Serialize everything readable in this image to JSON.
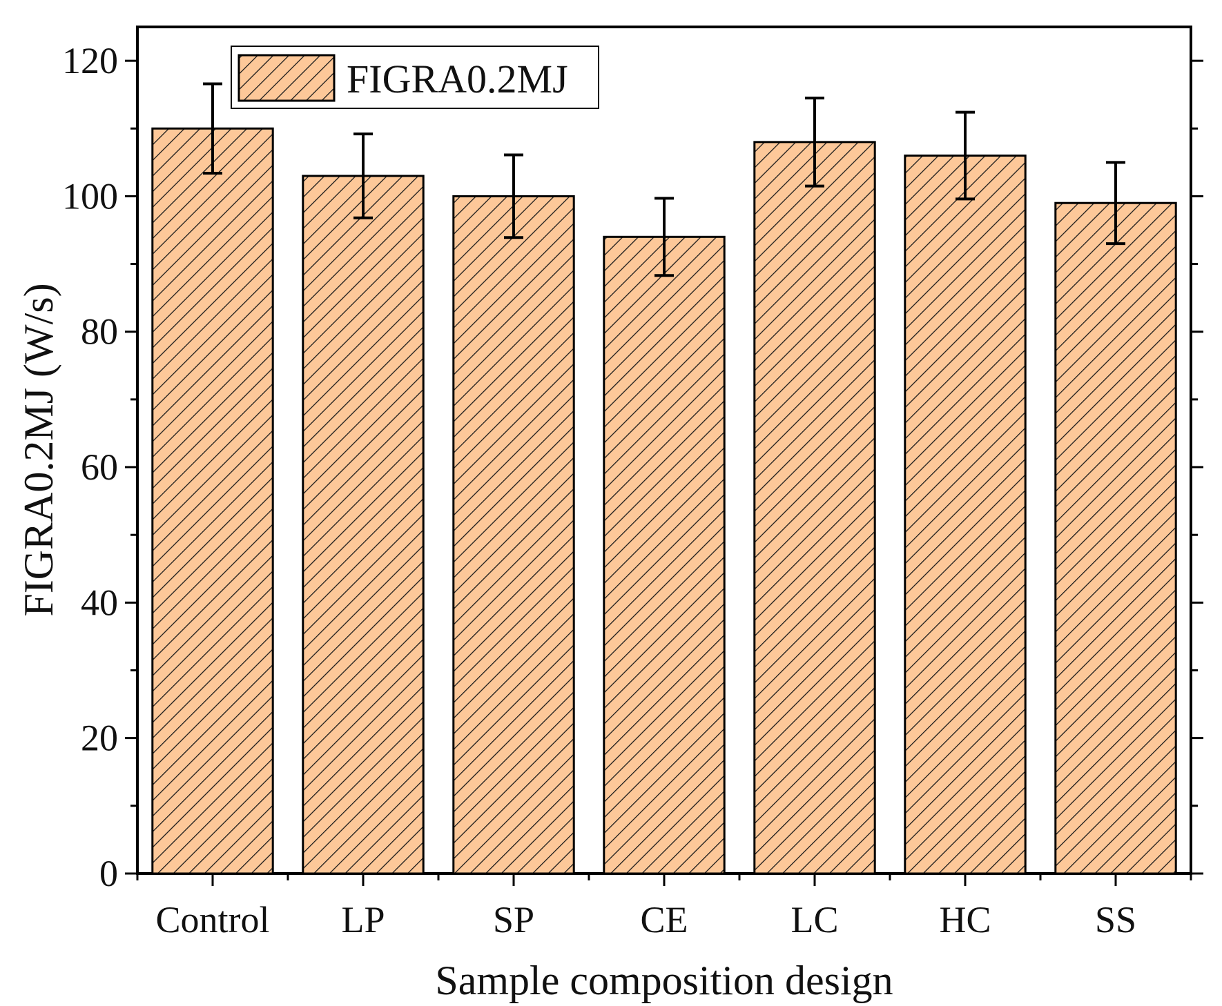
{
  "chart_data": {
    "type": "bar",
    "title": "",
    "xlabel": "Sample composition design",
    "ylabel": "FIGRA0.2MJ (W/s)",
    "categories": [
      "Control",
      "LP",
      "SP",
      "CE",
      "LC",
      "HC",
      "SS"
    ],
    "series": [
      {
        "name": "FIGRA0.2MJ",
        "values": [
          110,
          103,
          100,
          94,
          108,
          106,
          99
        ],
        "errors": [
          6.6,
          6.2,
          6.1,
          5.7,
          6.5,
          6.4,
          6.0
        ]
      }
    ],
    "ylim": [
      0,
      125
    ],
    "yticks": [
      0,
      20,
      40,
      60,
      80,
      100,
      120
    ],
    "ytick_labels": [
      "0",
      "20",
      "40",
      "60",
      "80",
      "100",
      "120"
    ],
    "legend_position": "top-left",
    "grid": false,
    "colors": {
      "bar_fill": "#fdc899",
      "hatch": "#1a1a1a",
      "outline": "#000000"
    }
  }
}
